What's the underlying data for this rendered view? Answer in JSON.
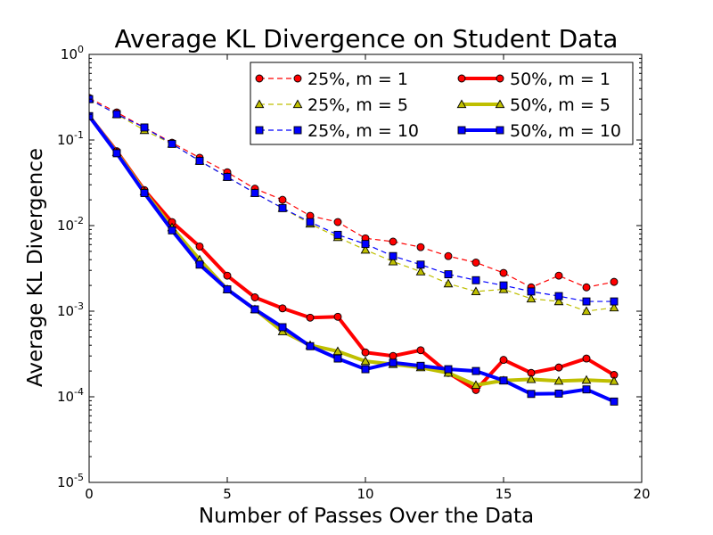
{
  "chart_data": {
    "type": "line",
    "title": "Average KL Divergence on Student Data",
    "xlabel": "Number of Passes Over the Data",
    "ylabel": "Average KL Divergence",
    "xlim": [
      0,
      20
    ],
    "ylim": [
      1e-05,
      1
    ],
    "yscale": "log",
    "grid": false,
    "legend_position": "top-right",
    "x_ticks": [
      {
        "value": 0,
        "label": "0"
      },
      {
        "value": 5,
        "label": "5"
      },
      {
        "value": 10,
        "label": "10"
      },
      {
        "value": 15,
        "label": "15"
      },
      {
        "value": 20,
        "label": "20"
      }
    ],
    "y_ticks": [
      {
        "value": 1,
        "base": "10",
        "exp": "0"
      },
      {
        "value": 0.1,
        "base": "10",
        "exp": "-1"
      },
      {
        "value": 0.01,
        "base": "10",
        "exp": "-2"
      },
      {
        "value": 0.001,
        "base": "10",
        "exp": "-3"
      },
      {
        "value": 0.0001,
        "base": "10",
        "exp": "-4"
      },
      {
        "value": 1e-05,
        "base": "10",
        "exp": "-5"
      }
    ],
    "x": [
      0,
      1,
      2,
      3,
      4,
      5,
      6,
      7,
      8,
      9,
      10,
      11,
      12,
      13,
      14,
      15,
      16,
      17,
      18,
      19
    ],
    "series": [
      {
        "name": "25%, m = 1",
        "color": "#ff0000",
        "marker": "circle",
        "line": "dashed",
        "values": [
          0.31,
          0.21,
          0.14,
          0.093,
          0.062,
          0.042,
          0.027,
          0.02,
          0.013,
          0.011,
          0.0071,
          0.0065,
          0.0056,
          0.0044,
          0.0037,
          0.0028,
          0.0019,
          0.0026,
          0.0019,
          0.0022
        ]
      },
      {
        "name": "25%, m = 5",
        "color": "#bfbf00",
        "marker": "triangle",
        "line": "dashed",
        "values": [
          0.3,
          0.2,
          0.13,
          0.09,
          0.057,
          0.037,
          0.024,
          0.016,
          0.0105,
          0.0073,
          0.0052,
          0.0038,
          0.0029,
          0.0021,
          0.0017,
          0.0018,
          0.0014,
          0.0013,
          0.001,
          0.0011
        ]
      },
      {
        "name": "25%, m = 10",
        "color": "#0000ff",
        "marker": "square",
        "line": "dashed",
        "values": [
          0.3,
          0.2,
          0.14,
          0.09,
          0.057,
          0.037,
          0.024,
          0.016,
          0.011,
          0.0078,
          0.0061,
          0.0044,
          0.0035,
          0.0027,
          0.0023,
          0.002,
          0.0017,
          0.0015,
          0.0013,
          0.0013
        ]
      },
      {
        "name": "50%, m = 1",
        "color": "#ff0000",
        "marker": "circle",
        "line": "solid",
        "values": [
          0.19,
          0.074,
          0.026,
          0.011,
          0.0057,
          0.0026,
          0.00145,
          0.00108,
          0.00084,
          0.00086,
          0.00033,
          0.0003,
          0.00035,
          0.00019,
          0.00012,
          0.00027,
          0.00019,
          0.00022,
          0.00028,
          0.00018
        ]
      },
      {
        "name": "50%, m = 5",
        "color": "#bfbf00",
        "marker": "triangle",
        "line": "solid",
        "values": [
          0.19,
          0.072,
          0.025,
          0.0095,
          0.004,
          0.0018,
          0.00105,
          0.00058,
          0.0004,
          0.00034,
          0.00026,
          0.00024,
          0.00022,
          0.00019,
          0.000137,
          0.000155,
          0.00016,
          0.000153,
          0.000157,
          0.000152
        ]
      },
      {
        "name": "50%, m = 10",
        "color": "#0000ff",
        "marker": "square",
        "line": "solid",
        "values": [
          0.19,
          0.07,
          0.024,
          0.0088,
          0.0035,
          0.0018,
          0.00105,
          0.00065,
          0.00039,
          0.00028,
          0.00021,
          0.00025,
          0.00023,
          0.00021,
          0.0002,
          0.000155,
          0.000108,
          0.000109,
          0.000122,
          8.8e-05
        ]
      }
    ]
  }
}
